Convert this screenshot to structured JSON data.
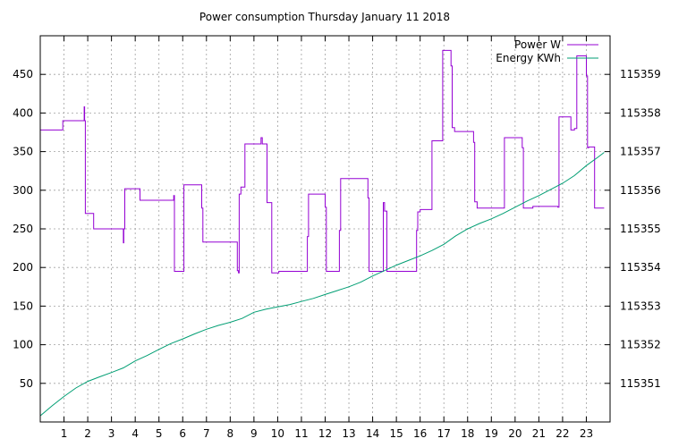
{
  "chart_data": {
    "type": "line",
    "title": "Power consumption Thursday January 11 2018",
    "xlabel": "",
    "ylabel": "",
    "y2label": "",
    "grid": true,
    "legend_position": "top-right",
    "xlim": [
      0,
      24
    ],
    "ylim": [
      0,
      500
    ],
    "y2lim": [
      115350,
      115360
    ],
    "x_ticks": [
      1,
      2,
      3,
      4,
      5,
      6,
      7,
      8,
      9,
      10,
      11,
      12,
      13,
      14,
      15,
      16,
      17,
      18,
      19,
      20,
      21,
      22,
      23
    ],
    "y_ticks": [
      50,
      100,
      150,
      200,
      250,
      300,
      350,
      400,
      450
    ],
    "y2_ticks": [
      115351,
      115352,
      115353,
      115354,
      115355,
      115356,
      115357,
      115358,
      115359
    ],
    "x_tick_labels": [
      "1",
      "2",
      "3",
      "4",
      "5",
      "6",
      "7",
      "8",
      "9",
      "10",
      "11",
      "12",
      "13",
      "14",
      "15",
      "16",
      "17",
      "18",
      "19",
      "20",
      "21",
      "22",
      "23"
    ],
    "y_tick_labels": [
      "50",
      "100",
      "150",
      "200",
      "250",
      "300",
      "350",
      "400",
      "450"
    ],
    "y2_tick_labels": [
      "115351",
      "115352",
      "115353",
      "115354",
      "115355",
      "115356",
      "115357",
      "115358",
      "115359"
    ],
    "series": [
      {
        "name": "Power W",
        "color": "#9400d3",
        "axis": "y",
        "step": true,
        "x": [
          0,
          0.95,
          1.85,
          1.87,
          1.9,
          2.25,
          3.5,
          3.52,
          3.56,
          4.2,
          5.62,
          5.65,
          6.05,
          6.8,
          6.85,
          8.3,
          8.35,
          8.38,
          8.45,
          8.62,
          9.3,
          9.35,
          9.55,
          9.75,
          10.05,
          11.25,
          11.3,
          12.0,
          12.05,
          12.6,
          12.65,
          13.8,
          13.85,
          14.45,
          14.5,
          14.6,
          15.8,
          15.85,
          15.9,
          16.0,
          16.5,
          16.95,
          17.3,
          17.35,
          17.45,
          18.25,
          18.3,
          18.4,
          19.55,
          20.3,
          20.35,
          20.75,
          21.8,
          21.85,
          22.35,
          22.5,
          22.6,
          23.0,
          23.05,
          23.1,
          23.35,
          23.75
        ],
        "y": [
          378,
          390,
          408,
          390,
          270,
          250,
          232,
          250,
          302,
          287,
          293,
          195,
          307,
          277,
          233,
          196,
          193,
          295,
          304,
          360,
          368,
          360,
          284,
          193,
          195,
          240,
          295,
          278,
          195,
          248,
          315,
          290,
          195,
          284,
          273,
          195,
          195,
          248,
          272,
          275,
          364,
          481,
          461,
          381,
          376,
          362,
          285,
          277,
          368,
          355,
          277,
          279,
          278,
          395,
          378,
          380,
          474,
          448,
          355,
          356,
          277,
          277
        ]
      },
      {
        "name": "Energy KWh",
        "color": "#009e73",
        "axis": "y2",
        "step": false,
        "x": [
          0,
          0.5,
          1,
          1.5,
          2,
          2.5,
          3,
          3.5,
          4,
          4.5,
          5,
          5.5,
          6,
          6.5,
          7,
          7.5,
          8,
          8.5,
          9,
          9.5,
          10,
          10.5,
          11,
          11.5,
          12,
          12.5,
          13,
          13.5,
          14,
          14.5,
          15,
          15.5,
          16,
          16.5,
          17,
          17.5,
          18,
          18.5,
          19,
          19.5,
          20,
          20.5,
          21,
          21.5,
          22,
          22.5,
          23,
          23.5,
          23.75
        ],
        "y": [
          115350.16,
          115350.42,
          115350.66,
          115350.88,
          115351.05,
          115351.17,
          115351.28,
          115351.4,
          115351.58,
          115351.72,
          115351.88,
          115352.03,
          115352.15,
          115352.28,
          115352.4,
          115352.5,
          115352.58,
          115352.68,
          115352.84,
          115352.92,
          115352.98,
          115353.04,
          115353.12,
          115353.2,
          115353.3,
          115353.4,
          115353.5,
          115353.62,
          115353.78,
          115353.92,
          115354.06,
          115354.18,
          115354.3,
          115354.44,
          115354.6,
          115354.82,
          115355.0,
          115355.14,
          115355.26,
          115355.4,
          115355.56,
          115355.72,
          115355.86,
          115356.02,
          115356.18,
          115356.38,
          115356.64,
          115356.86,
          115356.98
        ]
      }
    ]
  }
}
